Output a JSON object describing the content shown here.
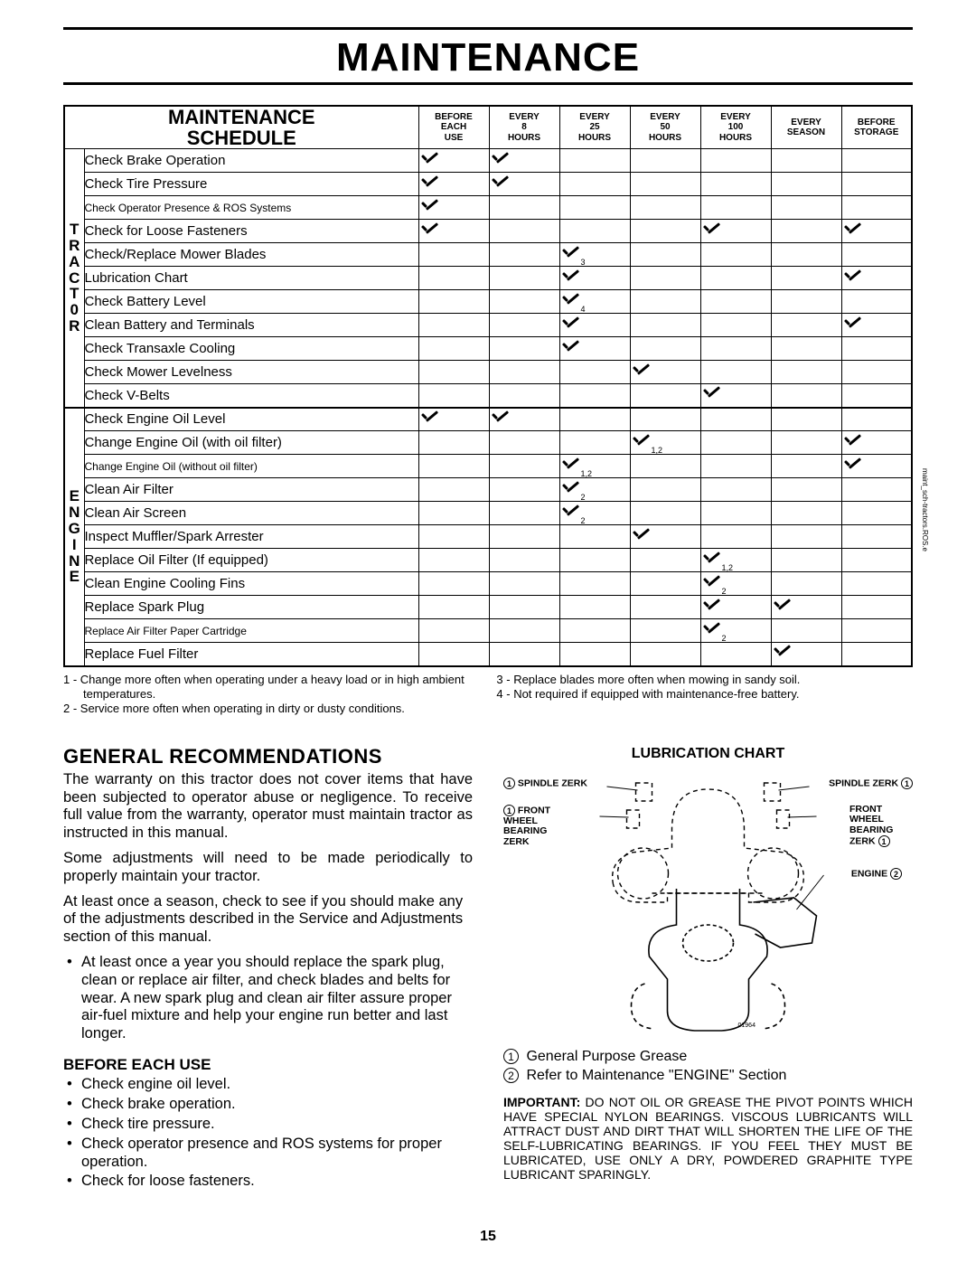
{
  "page_title": "MAINTENANCE",
  "page_number": "15",
  "side_code": "maint_sch-tractors.ROS.e",
  "diagram_code": "01964",
  "schedule": {
    "title_line1": "MAINTENANCE",
    "title_line2": "SCHEDULE",
    "columns": [
      {
        "l1": "BEFORE",
        "l2": "EACH",
        "l3": "USE"
      },
      {
        "l1": "EVERY",
        "l2": "8",
        "l3": "HOURS"
      },
      {
        "l1": "EVERY",
        "l2": "25",
        "l3": "HOURS"
      },
      {
        "l1": "EVERY",
        "l2": "50",
        "l3": "HOURS"
      },
      {
        "l1": "EVERY",
        "l2": "100",
        "l3": "HOURS"
      },
      {
        "l1": "EVERY",
        "l2": "SEASON",
        "l3": ""
      },
      {
        "l1": "BEFORE",
        "l2": "STORAGE",
        "l3": ""
      }
    ],
    "sections": [
      {
        "label_chars": [
          "T",
          "R",
          "A",
          "C",
          "T",
          "0",
          "R"
        ],
        "rows": [
          {
            "task": "Check Brake Operation",
            "marks": [
              true,
              true,
              false,
              false,
              false,
              false,
              false
            ]
          },
          {
            "task": "Check Tire Pressure",
            "marks": [
              true,
              true,
              false,
              false,
              false,
              false,
              false
            ]
          },
          {
            "task": "Check Operator Presence & ROS Systems",
            "small": true,
            "marks": [
              true,
              false,
              false,
              false,
              false,
              false,
              false
            ]
          },
          {
            "task": "Check for Loose Fasteners",
            "marks": [
              true,
              false,
              false,
              false,
              true,
              false,
              true
            ]
          },
          {
            "task": "Check/Replace Mower Blades",
            "marks": [
              false,
              false,
              true,
              false,
              false,
              false,
              false
            ],
            "subs": {
              "2": "3"
            }
          },
          {
            "task": "Lubrication Chart",
            "marks": [
              false,
              false,
              true,
              false,
              false,
              false,
              true
            ]
          },
          {
            "task": "Check Battery Level",
            "marks": [
              false,
              false,
              true,
              false,
              false,
              false,
              false
            ],
            "subs": {
              "2": "4"
            }
          },
          {
            "task": "Clean Battery and Terminals",
            "marks": [
              false,
              false,
              true,
              false,
              false,
              false,
              true
            ]
          },
          {
            "task": "Check Transaxle Cooling",
            "marks": [
              false,
              false,
              true,
              false,
              false,
              false,
              false
            ]
          },
          {
            "task": "Check Mower Levelness",
            "marks": [
              false,
              false,
              false,
              true,
              false,
              false,
              false
            ]
          },
          {
            "task": "Check V-Belts",
            "marks": [
              false,
              false,
              false,
              false,
              true,
              false,
              false
            ]
          }
        ]
      },
      {
        "label_chars": [
          "E",
          "N",
          "G",
          "I",
          "N",
          "E"
        ],
        "rows": [
          {
            "task": "Check Engine Oil Level",
            "marks": [
              true,
              true,
              false,
              false,
              false,
              false,
              false
            ]
          },
          {
            "task": "Change Engine Oil (with oil filter)",
            "marks": [
              false,
              false,
              false,
              true,
              false,
              false,
              true
            ],
            "subs": {
              "3": "1,2"
            }
          },
          {
            "task": "Change Engine Oil (without oil filter)",
            "small": true,
            "marks": [
              false,
              false,
              true,
              false,
              false,
              false,
              true
            ],
            "subs": {
              "2": "1,2"
            }
          },
          {
            "task": "Clean Air Filter",
            "marks": [
              false,
              false,
              true,
              false,
              false,
              false,
              false
            ],
            "subs": {
              "2": "2"
            }
          },
          {
            "task": "Clean Air Screen",
            "marks": [
              false,
              false,
              true,
              false,
              false,
              false,
              false
            ],
            "subs": {
              "2": "2"
            }
          },
          {
            "task": "Inspect Muffler/Spark Arrester",
            "marks": [
              false,
              false,
              false,
              true,
              false,
              false,
              false
            ]
          },
          {
            "task": "Replace Oil Filter (If equipped)",
            "marks": [
              false,
              false,
              false,
              false,
              true,
              false,
              false
            ],
            "subs": {
              "4": "1,2"
            }
          },
          {
            "task": "Clean Engine Cooling Fins",
            "marks": [
              false,
              false,
              false,
              false,
              true,
              false,
              false
            ],
            "subs": {
              "4": "2"
            }
          },
          {
            "task": "Replace Spark Plug",
            "marks": [
              false,
              false,
              false,
              false,
              true,
              true,
              false
            ]
          },
          {
            "task": "Replace Air Filter Paper Cartridge",
            "small": true,
            "marks": [
              false,
              false,
              false,
              false,
              true,
              false,
              false
            ],
            "subs": {
              "4": "2"
            }
          },
          {
            "task": "Replace Fuel Filter",
            "marks": [
              false,
              false,
              false,
              false,
              false,
              true,
              false
            ]
          }
        ]
      }
    ]
  },
  "footnotes": {
    "left": [
      "1 - Change more often when operating under a heavy load or in high ambient temperatures.",
      "2 - Service more often when operating in dirty or dusty conditions."
    ],
    "right": [
      "3 - Replace blades more often when mowing in sandy soil.",
      "4 - Not required if equipped with maintenance-free battery."
    ]
  },
  "general": {
    "heading": "GENERAL RECOMMENDATIONS",
    "p1": "The warranty on this tractor does not cover items that have been subjected to operator abuse or negligence. To receive full value from the warranty, operator must maintain tractor as instructed in this manual.",
    "p2": "Some adjustments will need to be made periodically to properly maintain your tractor.",
    "p3": "At least once a season, check to see if you should make any of the adjustments described in the Service and Adjustments section of this manual.",
    "bullet_season": "At least once a year you should replace the spark plug, clean or replace air filter, and check blades and belts for wear.  A new spark plug and clean air filter assure proper air-fuel mixture and help your engine run better and last longer."
  },
  "before_each_use": {
    "heading": "BEFORE EACH USE",
    "items": [
      "Check engine oil level.",
      "Check brake operation.",
      "Check tire pressure.",
      "Check operator presence and ROS systems for proper operation.",
      "Check for loose fasteners."
    ]
  },
  "lubrication": {
    "heading": "LUBRICATION CHART",
    "labels": {
      "spindle_l": "SPINDLE ZERK",
      "spindle_r": "SPINDLE ZERK",
      "front_l": "FRONT\nWHEEL\nBEARING\nZERK",
      "front_r": "FRONT\nWHEEL\nBEARING\nZERK",
      "engine": "ENGINE"
    },
    "legend1": "General Purpose Grease",
    "legend2": "Refer to Maintenance \"ENGINE\" Section",
    "important_label": "IMPORTANT:",
    "important_text": "DO NOT OIL OR GREASE THE PIVOT POINTS WHICH HAVE SPECIAL NYLON BEARINGS. VISCOUS LUBRICANTS WILL ATTRACT DUST AND DIRT THAT WILL SHORTEN THE LIFE OF THE SELF-LUBRICATING BEARINGS. IF YOU FEEL THEY MUST BE LUBRICATED, USE ONLY A DRY, POWDERED GRAPHITE TYPE LUBRICANT SPARINGLY."
  }
}
